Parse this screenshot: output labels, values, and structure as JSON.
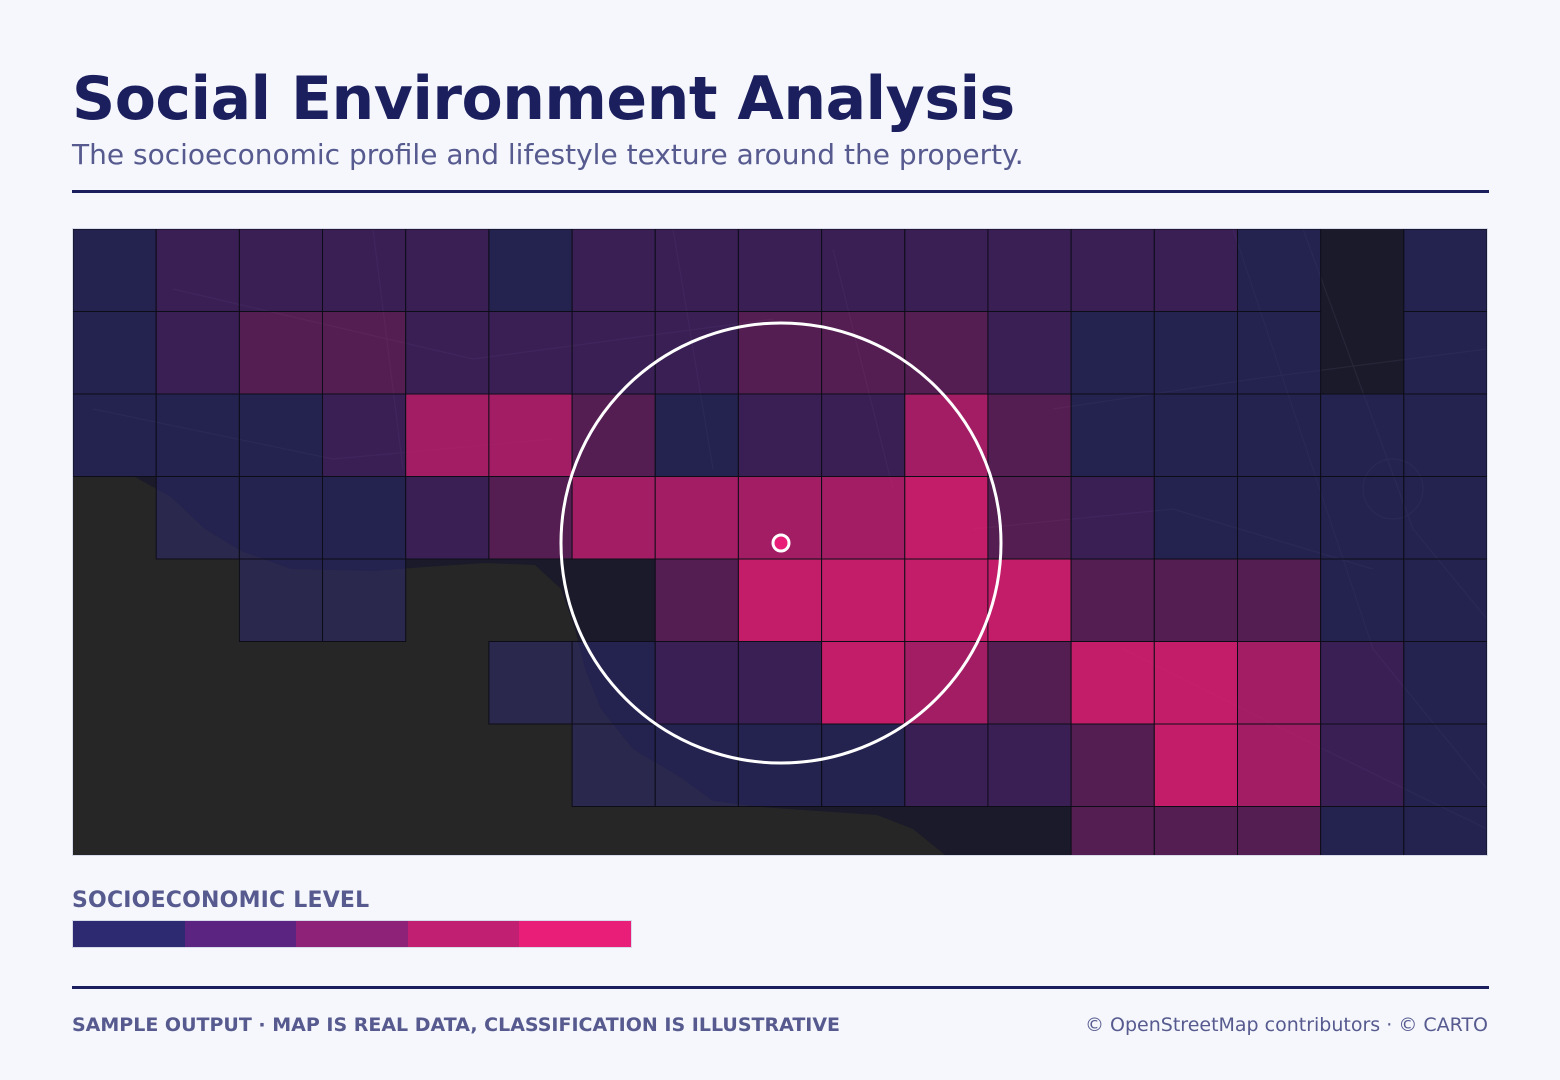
{
  "header": {
    "title": "Social Environment Analysis",
    "subtitle": "The socioeconomic profile and lifestyle texture around the property."
  },
  "map": {
    "grid_columns": 17,
    "grid_rows": 8,
    "land_color": "#1a1a2b",
    "water_color": "#262626",
    "ring_color": "#ffffff",
    "marker_color": "#e91e78",
    "cell_levels": [
      [
        1,
        2,
        2,
        2,
        2,
        1,
        2,
        2,
        2,
        2,
        2,
        2,
        2,
        2,
        1,
        0,
        1
      ],
      [
        1,
        2,
        3,
        3,
        2,
        2,
        2,
        2,
        3,
        3,
        3,
        2,
        1,
        1,
        1,
        0,
        1
      ],
      [
        1,
        1,
        1,
        2,
        4,
        4,
        3,
        1,
        2,
        2,
        4,
        3,
        1,
        1,
        1,
        1,
        1
      ],
      [
        0,
        1,
        1,
        1,
        2,
        3,
        4,
        4,
        4,
        4,
        5,
        3,
        2,
        1,
        1,
        1,
        1
      ],
      [
        0,
        0,
        1,
        1,
        0,
        0,
        0,
        3,
        5,
        5,
        5,
        5,
        3,
        3,
        3,
        1,
        1
      ],
      [
        0,
        0,
        0,
        0,
        0,
        1,
        1,
        2,
        2,
        5,
        4,
        3,
        5,
        5,
        4,
        2,
        1
      ],
      [
        0,
        0,
        0,
        0,
        0,
        0,
        1,
        1,
        1,
        1,
        2,
        2,
        3,
        5,
        4,
        2,
        1
      ],
      [
        0,
        0,
        0,
        0,
        0,
        0,
        0,
        0,
        0,
        0,
        0,
        0,
        3,
        3,
        3,
        1,
        1
      ]
    ]
  },
  "legend": {
    "title": "SOCIOECONOMIC LEVEL",
    "colors": [
      "#2d2a72",
      "#5a2480",
      "#8e2279",
      "#c11f72",
      "#e91e78"
    ]
  },
  "footer": {
    "left": "SAMPLE OUTPUT · MAP IS REAL DATA, CLASSIFICATION IS ILLUSTRATIVE",
    "right": "© OpenStreetMap contributors · © CARTO"
  }
}
